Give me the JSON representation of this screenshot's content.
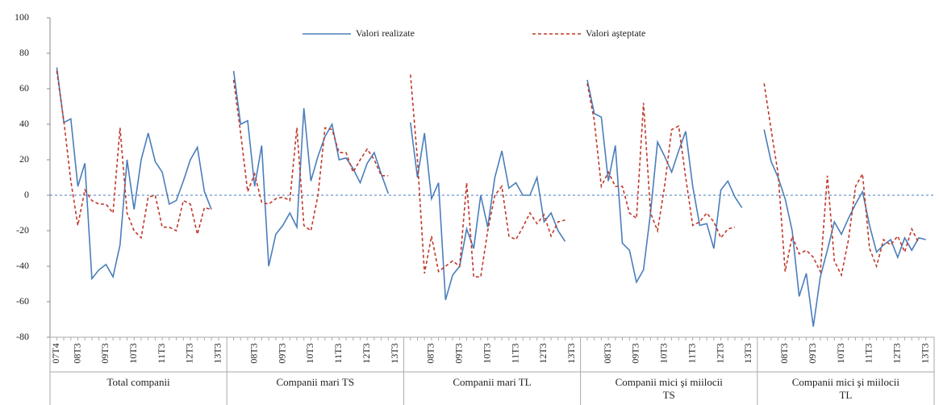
{
  "chart_data": {
    "type": "line",
    "ylim": [
      -80,
      100
    ],
    "yticks": [
      -80,
      -60,
      -40,
      -20,
      0,
      20,
      40,
      60,
      80,
      100
    ],
    "series": [
      {
        "name": "Valori realizate",
        "color": "#4a7ebb",
        "dash": "none"
      },
      {
        "name": "Valori aşteptate",
        "color": "#c0392b",
        "dash": "4 3"
      }
    ],
    "panels": [
      {
        "label": "Total companii",
        "categories": [
          "07T4",
          null,
          null,
          "08T3",
          null,
          null,
          null,
          "09T3",
          null,
          null,
          null,
          "10T3",
          null,
          null,
          null,
          "11T3",
          null,
          null,
          null,
          "12T3",
          null,
          null,
          null,
          "13T3"
        ],
        "series": [
          {
            "values": [
              72,
              41,
              43,
              5,
              18,
              -47,
              -42,
              -39,
              -46,
              -28,
              20,
              -8,
              20,
              35,
              19,
              13,
              -5,
              -3,
              8,
              20,
              27,
              2,
              -8,
              null
            ]
          },
          {
            "values": [
              70,
              42,
              8,
              -17,
              3,
              -3,
              -5,
              -5,
              -10,
              38,
              -10,
              -20,
              -24,
              -1,
              0,
              -18,
              -18,
              -20,
              -3,
              -5,
              -22,
              -7,
              -8,
              null
            ]
          }
        ]
      },
      {
        "label": "Companii mari TS",
        "categories": [
          null,
          null,
          null,
          "08T3",
          null,
          null,
          null,
          "09T3",
          null,
          null,
          null,
          "10T3",
          null,
          null,
          null,
          "11T3",
          null,
          null,
          null,
          "12T3",
          null,
          null,
          null,
          "13T3"
        ],
        "series": [
          {
            "values": [
              70,
              40,
              42,
              5,
              28,
              -40,
              -22,
              -17,
              -10,
              -18,
              49,
              8,
              22,
              33,
              40,
              20,
              21,
              15,
              7,
              18,
              24,
              12,
              1,
              null
            ]
          },
          {
            "values": [
              65,
              35,
              2,
              12,
              -4,
              -5,
              -2,
              -1,
              -3,
              38,
              -17,
              -20,
              0,
              38,
              37,
              24,
              24,
              13,
              20,
              26,
              20,
              11,
              11,
              null
            ]
          }
        ]
      },
      {
        "label": "Companii mari TL",
        "categories": [
          null,
          null,
          null,
          "08T3",
          null,
          null,
          null,
          "09T3",
          null,
          null,
          null,
          "10T3",
          null,
          null,
          null,
          "11T3",
          null,
          null,
          null,
          "12T3",
          null,
          null,
          null,
          "13T3"
        ],
        "series": [
          {
            "values": [
              41,
              10,
              35,
              -2,
              7,
              -59,
              -45,
              -40,
              -19,
              -30,
              0,
              -18,
              10,
              25,
              4,
              7,
              0,
              0,
              10,
              -15,
              -10,
              -20,
              -26,
              null
            ]
          },
          {
            "values": [
              68,
              20,
              -44,
              -23,
              -43,
              -40,
              -37,
              -40,
              7,
              -46,
              -46,
              -20,
              0,
              5,
              -23,
              -25,
              -18,
              -10,
              -16,
              -11,
              -23,
              -15,
              -14,
              null
            ]
          }
        ]
      },
      {
        "label": "Companii mici şi miilocii TS",
        "categories": [
          null,
          null,
          null,
          "08T3",
          null,
          null,
          null,
          "09T3",
          null,
          null,
          null,
          "10T3",
          null,
          null,
          null,
          "11T3",
          null,
          null,
          null,
          "12T3",
          null,
          null,
          null,
          "13T3"
        ],
        "series": [
          {
            "values": [
              65,
              46,
              44,
              8,
              28,
              -27,
              -31,
              -49,
              -42,
              -10,
              30,
              22,
              13,
              25,
              36,
              5,
              -17,
              -16,
              -30,
              3,
              8,
              -1,
              -7,
              null
            ]
          },
          {
            "values": [
              63,
              42,
              5,
              13,
              5,
              5,
              -10,
              -13,
              52,
              -10,
              -20,
              5,
              37,
              39,
              10,
              -17,
              -15,
              -10,
              -15,
              -24,
              -19,
              -18,
              null,
              null
            ]
          }
        ]
      },
      {
        "label": "Companii mici şi miilocii TL",
        "categories": [
          null,
          null,
          null,
          "08T3",
          null,
          null,
          null,
          "09T3",
          null,
          null,
          null,
          "10T3",
          null,
          null,
          null,
          "11T3",
          null,
          null,
          null,
          "12T3",
          null,
          null,
          null,
          "13T3"
        ],
        "series": [
          {
            "values": [
              37,
              19,
              10,
              -2,
              -20,
              -57,
              -44,
              -74,
              -46,
              -31,
              -15,
              -22,
              -13,
              -5,
              2,
              -17,
              -32,
              -28,
              -25,
              -35,
              -24,
              -31,
              -24,
              -25
            ]
          },
          {
            "values": [
              63,
              37,
              12,
              -43,
              -23,
              -33,
              -31,
              -35,
              -43,
              11,
              -37,
              -45,
              -25,
              5,
              12,
              -30,
              -40,
              -25,
              -28,
              -23,
              -32,
              -19,
              -27,
              null
            ]
          }
        ]
      }
    ]
  }
}
